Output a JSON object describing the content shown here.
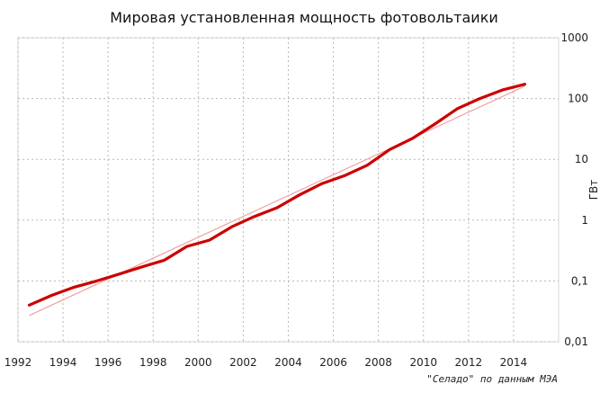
{
  "chart_data": {
    "type": "line",
    "title": "Мировая установленная мощность фотовольтаики",
    "ylabel": "ГВт",
    "xlabel": "",
    "source_note": "\"Селадо\" по данным МЭА",
    "x_ticks": [
      "1992",
      "1994",
      "1996",
      "1998",
      "2000",
      "2002",
      "2004",
      "2006",
      "2008",
      "2010",
      "2012",
      "2014"
    ],
    "y_ticks": [
      "0,01",
      "0,1",
      "1",
      "10",
      "100",
      "1000"
    ],
    "y_tick_values": [
      0.01,
      0.1,
      1,
      10,
      100,
      1000
    ],
    "xlim": [
      1992,
      2016
    ],
    "ylim": [
      0.01,
      1000
    ],
    "y_scale": "log",
    "grid": true,
    "colors": {
      "main": "#cc0000",
      "trend": "#f0a0a0"
    },
    "series": [
      {
        "values": [
          {
            "x": 1992.5,
            "y": 0.04
          },
          {
            "x": 1993.5,
            "y": 0.058
          },
          {
            "x": 1994.5,
            "y": 0.079
          },
          {
            "x": 1995.5,
            "y": 0.1
          },
          {
            "x": 1996.5,
            "y": 0.13
          },
          {
            "x": 1997.5,
            "y": 0.17
          },
          {
            "x": 1998.5,
            "y": 0.22
          },
          {
            "x": 1999.5,
            "y": 0.37
          },
          {
            "x": 2000.5,
            "y": 0.47
          },
          {
            "x": 2001.5,
            "y": 0.78
          },
          {
            "x": 2002.5,
            "y": 1.15
          },
          {
            "x": 2003.5,
            "y": 1.6
          },
          {
            "x": 2004.5,
            "y": 2.6
          },
          {
            "x": 2005.5,
            "y": 4.0
          },
          {
            "x": 2006.5,
            "y": 5.4
          },
          {
            "x": 2007.5,
            "y": 8.0
          },
          {
            "x": 2008.5,
            "y": 14.5
          },
          {
            "x": 2009.5,
            "y": 22
          },
          {
            "x": 2010.5,
            "y": 38
          },
          {
            "x": 2011.5,
            "y": 68
          },
          {
            "x": 2012.5,
            "y": 100
          },
          {
            "x": 2013.5,
            "y": 138
          },
          {
            "x": 2014.5,
            "y": 172
          }
        ]
      },
      {
        "values": [
          {
            "x": 1992.5,
            "y": 0.027
          },
          {
            "x": 2014.5,
            "y": 160
          }
        ]
      }
    ]
  }
}
